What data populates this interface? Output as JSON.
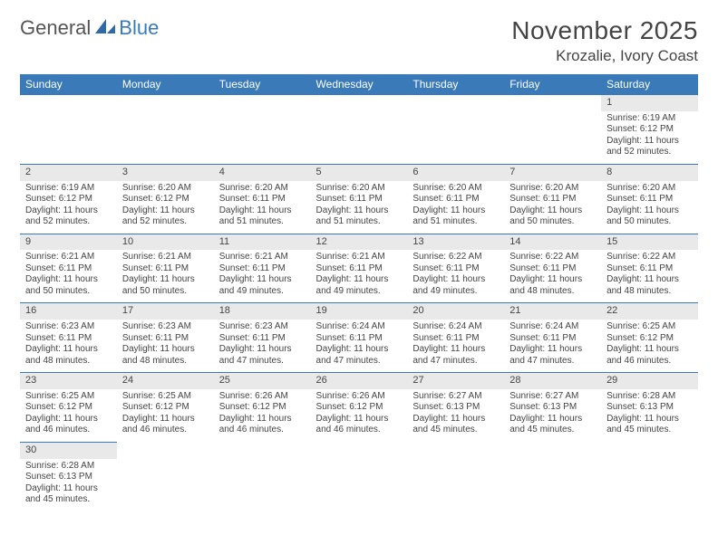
{
  "logo": {
    "general": "General",
    "blue": "Blue"
  },
  "header": {
    "month_title": "November 2025",
    "location": "Krozalie, Ivory Coast"
  },
  "colors": {
    "header_bg": "#3a7ab8",
    "daynum_bg": "#e9e9e9",
    "border": "#3a7ab8"
  },
  "weekdays": [
    "Sunday",
    "Monday",
    "Tuesday",
    "Wednesday",
    "Thursday",
    "Friday",
    "Saturday"
  ],
  "weeks": [
    {
      "days": [
        null,
        null,
        null,
        null,
        null,
        null,
        {
          "n": "1",
          "sunrise": "6:19 AM",
          "sunset": "6:12 PM",
          "day_h": "11",
          "day_m": "52"
        }
      ]
    },
    {
      "days": [
        {
          "n": "2",
          "sunrise": "6:19 AM",
          "sunset": "6:12 PM",
          "day_h": "11",
          "day_m": "52"
        },
        {
          "n": "3",
          "sunrise": "6:20 AM",
          "sunset": "6:12 PM",
          "day_h": "11",
          "day_m": "52"
        },
        {
          "n": "4",
          "sunrise": "6:20 AM",
          "sunset": "6:11 PM",
          "day_h": "11",
          "day_m": "51"
        },
        {
          "n": "5",
          "sunrise": "6:20 AM",
          "sunset": "6:11 PM",
          "day_h": "11",
          "day_m": "51"
        },
        {
          "n": "6",
          "sunrise": "6:20 AM",
          "sunset": "6:11 PM",
          "day_h": "11",
          "day_m": "51"
        },
        {
          "n": "7",
          "sunrise": "6:20 AM",
          "sunset": "6:11 PM",
          "day_h": "11",
          "day_m": "50"
        },
        {
          "n": "8",
          "sunrise": "6:20 AM",
          "sunset": "6:11 PM",
          "day_h": "11",
          "day_m": "50"
        }
      ]
    },
    {
      "days": [
        {
          "n": "9",
          "sunrise": "6:21 AM",
          "sunset": "6:11 PM",
          "day_h": "11",
          "day_m": "50"
        },
        {
          "n": "10",
          "sunrise": "6:21 AM",
          "sunset": "6:11 PM",
          "day_h": "11",
          "day_m": "50"
        },
        {
          "n": "11",
          "sunrise": "6:21 AM",
          "sunset": "6:11 PM",
          "day_h": "11",
          "day_m": "49"
        },
        {
          "n": "12",
          "sunrise": "6:21 AM",
          "sunset": "6:11 PM",
          "day_h": "11",
          "day_m": "49"
        },
        {
          "n": "13",
          "sunrise": "6:22 AM",
          "sunset": "6:11 PM",
          "day_h": "11",
          "day_m": "49"
        },
        {
          "n": "14",
          "sunrise": "6:22 AM",
          "sunset": "6:11 PM",
          "day_h": "11",
          "day_m": "48"
        },
        {
          "n": "15",
          "sunrise": "6:22 AM",
          "sunset": "6:11 PM",
          "day_h": "11",
          "day_m": "48"
        }
      ]
    },
    {
      "days": [
        {
          "n": "16",
          "sunrise": "6:23 AM",
          "sunset": "6:11 PM",
          "day_h": "11",
          "day_m": "48"
        },
        {
          "n": "17",
          "sunrise": "6:23 AM",
          "sunset": "6:11 PM",
          "day_h": "11",
          "day_m": "48"
        },
        {
          "n": "18",
          "sunrise": "6:23 AM",
          "sunset": "6:11 PM",
          "day_h": "11",
          "day_m": "47"
        },
        {
          "n": "19",
          "sunrise": "6:24 AM",
          "sunset": "6:11 PM",
          "day_h": "11",
          "day_m": "47"
        },
        {
          "n": "20",
          "sunrise": "6:24 AM",
          "sunset": "6:11 PM",
          "day_h": "11",
          "day_m": "47"
        },
        {
          "n": "21",
          "sunrise": "6:24 AM",
          "sunset": "6:11 PM",
          "day_h": "11",
          "day_m": "47"
        },
        {
          "n": "22",
          "sunrise": "6:25 AM",
          "sunset": "6:12 PM",
          "day_h": "11",
          "day_m": "46"
        }
      ]
    },
    {
      "days": [
        {
          "n": "23",
          "sunrise": "6:25 AM",
          "sunset": "6:12 PM",
          "day_h": "11",
          "day_m": "46"
        },
        {
          "n": "24",
          "sunrise": "6:25 AM",
          "sunset": "6:12 PM",
          "day_h": "11",
          "day_m": "46"
        },
        {
          "n": "25",
          "sunrise": "6:26 AM",
          "sunset": "6:12 PM",
          "day_h": "11",
          "day_m": "46"
        },
        {
          "n": "26",
          "sunrise": "6:26 AM",
          "sunset": "6:12 PM",
          "day_h": "11",
          "day_m": "46"
        },
        {
          "n": "27",
          "sunrise": "6:27 AM",
          "sunset": "6:13 PM",
          "day_h": "11",
          "day_m": "45"
        },
        {
          "n": "28",
          "sunrise": "6:27 AM",
          "sunset": "6:13 PM",
          "day_h": "11",
          "day_m": "45"
        },
        {
          "n": "29",
          "sunrise": "6:28 AM",
          "sunset": "6:13 PM",
          "day_h": "11",
          "day_m": "45"
        }
      ]
    },
    {
      "days": [
        {
          "n": "30",
          "sunrise": "6:28 AM",
          "sunset": "6:13 PM",
          "day_h": "11",
          "day_m": "45"
        },
        null,
        null,
        null,
        null,
        null,
        null
      ]
    }
  ],
  "labels": {
    "sunrise": "Sunrise:",
    "sunset": "Sunset:",
    "daylight1": "Daylight:",
    "hours_word": "hours",
    "and_word": "and",
    "minutes_word": "minutes."
  }
}
